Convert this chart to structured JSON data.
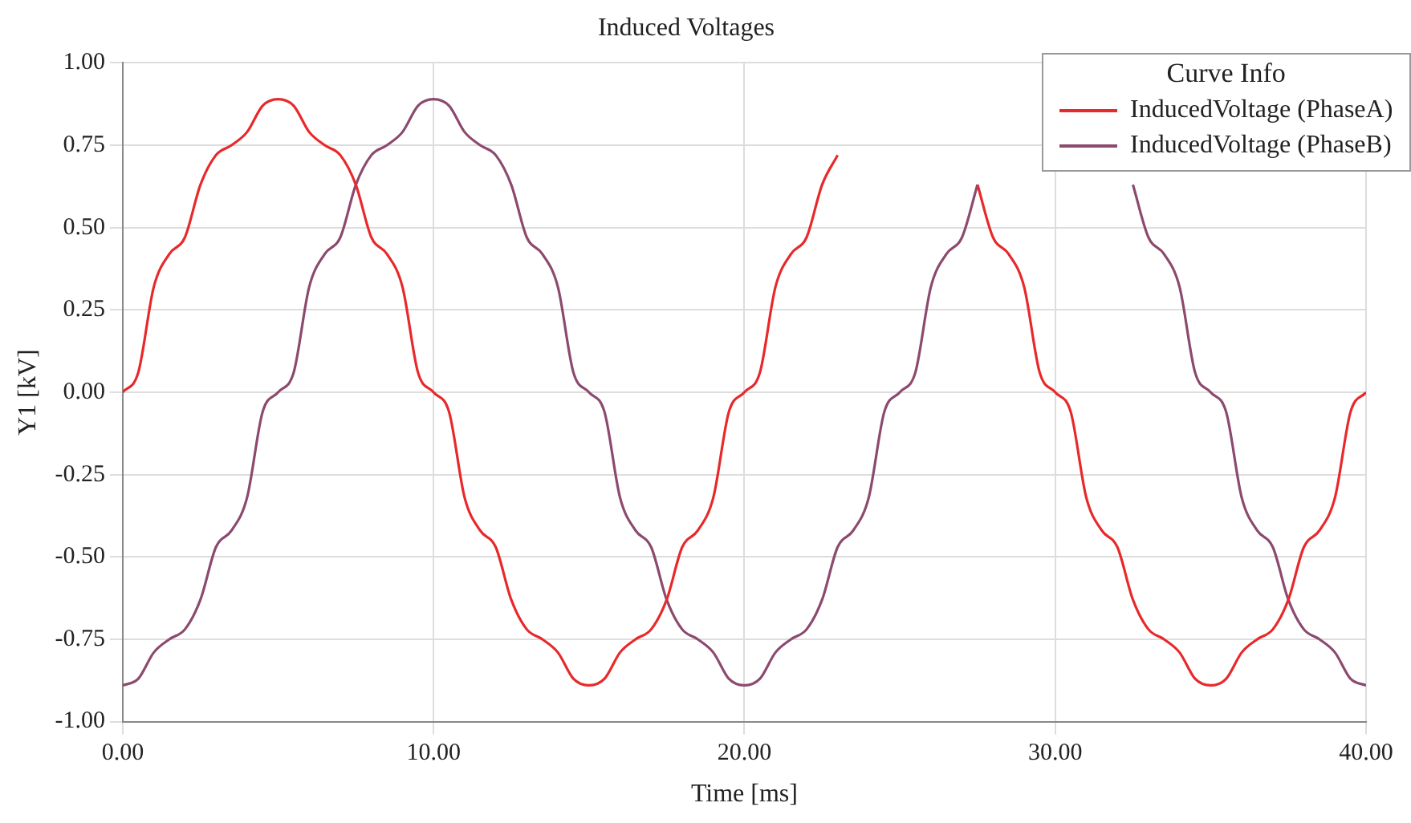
{
  "chart_data": {
    "type": "line",
    "title": "Induced Voltages",
    "xlabel": "Time [ms]",
    "ylabel": "Y1 [kV]",
    "legend_title": "Curve Info",
    "x": [
      0,
      0.5,
      1,
      1.5,
      2,
      2.5,
      3,
      3.5,
      4,
      4.5,
      5,
      5.5,
      6,
      6.5,
      7,
      7.5,
      8,
      8.5,
      9,
      9.5,
      10,
      10.5,
      11,
      11.5,
      12,
      12.5,
      13,
      13.5,
      14,
      14.5,
      15,
      15.5,
      16,
      16.5,
      17,
      17.5,
      18,
      18.5,
      19,
      19.5,
      20,
      20.5,
      21,
      21.5,
      22,
      22.5,
      23,
      23.5,
      24,
      24.5,
      25,
      25.5,
      26,
      26.5,
      27,
      27.5,
      28,
      28.5,
      29,
      29.5,
      30,
      30.5,
      31,
      31.5,
      32,
      32.5,
      33,
      33.5,
      34,
      34.5,
      35,
      35.5,
      36,
      36.5,
      37,
      37.5,
      38,
      38.5,
      39,
      39.5,
      40
    ],
    "series": [
      {
        "name": "InducedVoltage (PhaseA)",
        "color": "#e8292b",
        "values": [
          0,
          0.06,
          0.32,
          0.42,
          0.47,
          0.63,
          0.72,
          0.75,
          0.79,
          0.87,
          0.89,
          0.87,
          0.79,
          0.75,
          0.72,
          0.63,
          0.47,
          0.42,
          0.32,
          0.06,
          0,
          -0.06,
          -0.32,
          -0.42,
          -0.47,
          -0.63,
          -0.72,
          -0.75,
          -0.79,
          -0.87,
          -0.89,
          -0.87,
          -0.79,
          -0.75,
          -0.72,
          -0.63,
          -0.47,
          -0.42,
          -0.32,
          -0.06,
          0,
          0.06,
          0.32,
          0.42,
          0.47,
          0.63,
          0.72,
          null,
          null,
          null,
          null,
          null,
          null,
          null,
          null,
          0.63,
          0.47,
          0.42,
          0.32,
          0.06,
          0,
          -0.06,
          -0.32,
          -0.42,
          -0.47,
          -0.63,
          -0.72,
          -0.75,
          -0.79,
          -0.87,
          -0.89,
          -0.87,
          -0.79,
          -0.75,
          -0.72,
          -0.63,
          -0.47,
          -0.42,
          -0.32,
          -0.06,
          0
        ]
      },
      {
        "name": "InducedVoltage (PhaseB)",
        "color": "#8b4a6e",
        "values": [
          -0.89,
          -0.87,
          -0.79,
          -0.75,
          -0.72,
          -0.63,
          -0.47,
          -0.42,
          -0.32,
          -0.06,
          0,
          0.06,
          0.32,
          0.42,
          0.47,
          0.63,
          0.72,
          0.75,
          0.79,
          0.87,
          0.89,
          0.87,
          0.79,
          0.75,
          0.72,
          0.63,
          0.47,
          0.42,
          0.32,
          0.06,
          0,
          -0.06,
          -0.32,
          -0.42,
          -0.47,
          -0.63,
          -0.72,
          -0.75,
          -0.79,
          -0.87,
          -0.89,
          -0.87,
          -0.79,
          -0.75,
          -0.72,
          -0.63,
          -0.47,
          -0.42,
          -0.32,
          -0.06,
          0,
          0.06,
          0.32,
          0.42,
          0.47,
          0.63,
          null,
          null,
          null,
          null,
          null,
          null,
          null,
          null,
          null,
          0.63,
          0.47,
          0.42,
          0.32,
          0.06,
          0,
          -0.06,
          -0.32,
          -0.42,
          -0.47,
          -0.63,
          -0.72,
          -0.75,
          -0.79,
          -0.87,
          -0.89
        ]
      }
    ],
    "xlim": [
      0,
      40
    ],
    "xticks": [
      {
        "value": 0,
        "label": "0.00"
      },
      {
        "value": 10,
        "label": "10.00"
      },
      {
        "value": 20,
        "label": "20.00"
      },
      {
        "value": 30,
        "label": "30.00"
      },
      {
        "value": 40,
        "label": "40.00"
      }
    ],
    "ylim": [
      -1,
      1
    ],
    "yticks": [
      {
        "value": -1,
        "label": "-1.00"
      },
      {
        "value": -0.75,
        "label": "-0.75"
      },
      {
        "value": -0.5,
        "label": "-0.50"
      },
      {
        "value": -0.25,
        "label": "-0.25"
      },
      {
        "value": 0,
        "label": "0.00"
      },
      {
        "value": 0.25,
        "label": "0.25"
      },
      {
        "value": 0.5,
        "label": "0.50"
      },
      {
        "value": 0.75,
        "label": "0.75"
      },
      {
        "value": 1,
        "label": "1.00"
      }
    ],
    "grid": true,
    "legend": "top right",
    "marker": "none",
    "line_style": "solid"
  }
}
